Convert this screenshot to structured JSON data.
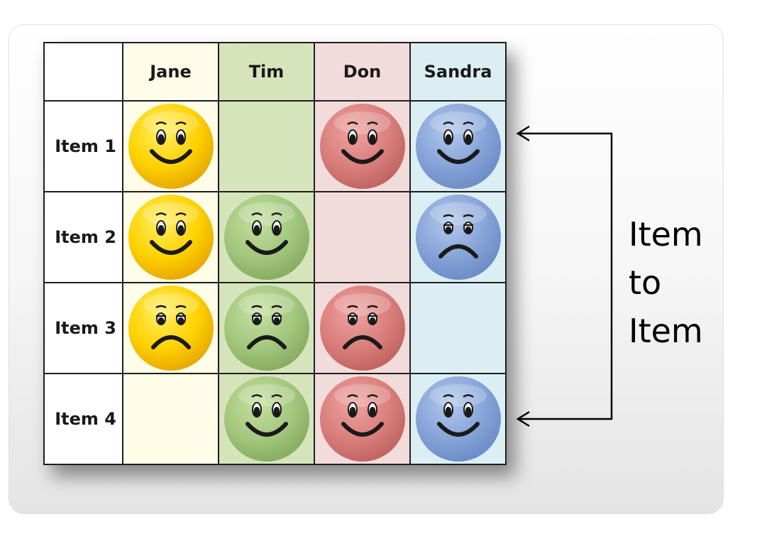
{
  "columns": [
    {
      "name": "Jane",
      "bg": "#fffde8",
      "face_color": "yellow"
    },
    {
      "name": "Tim",
      "bg": "#d6e4bc",
      "face_color": "green"
    },
    {
      "name": "Don",
      "bg": "#f2dcdb",
      "face_color": "red"
    },
    {
      "name": "Sandra",
      "bg": "#dbeef3",
      "face_color": "blue"
    }
  ],
  "rows": [
    {
      "label": "Item 1",
      "cells": [
        "happy",
        "",
        "happy",
        "happy"
      ]
    },
    {
      "label": "Item 2",
      "cells": [
        "happy",
        "happy",
        "",
        "sad"
      ]
    },
    {
      "label": "Item 3",
      "cells": [
        "sad",
        "sad",
        "sad",
        ""
      ]
    },
    {
      "label": "Item 4",
      "cells": [
        "",
        "happy",
        "happy",
        "happy"
      ]
    }
  ],
  "face_palette": {
    "yellow": {
      "light": "#ffef6a",
      "base": "#ffd200",
      "dark": "#e8a800"
    },
    "green": {
      "light": "#c6e0a0",
      "base": "#a3c77e",
      "dark": "#86ad60"
    },
    "red": {
      "light": "#eea3a1",
      "base": "#da7f7c",
      "dark": "#c06461"
    },
    "blue": {
      "light": "#b3c8ec",
      "base": "#87a4d9",
      "dark": "#6c8cc6"
    }
  },
  "annotation": {
    "lines": [
      "Item",
      "to",
      "Item"
    ],
    "arrow_icon": "left-arrow-icon"
  }
}
